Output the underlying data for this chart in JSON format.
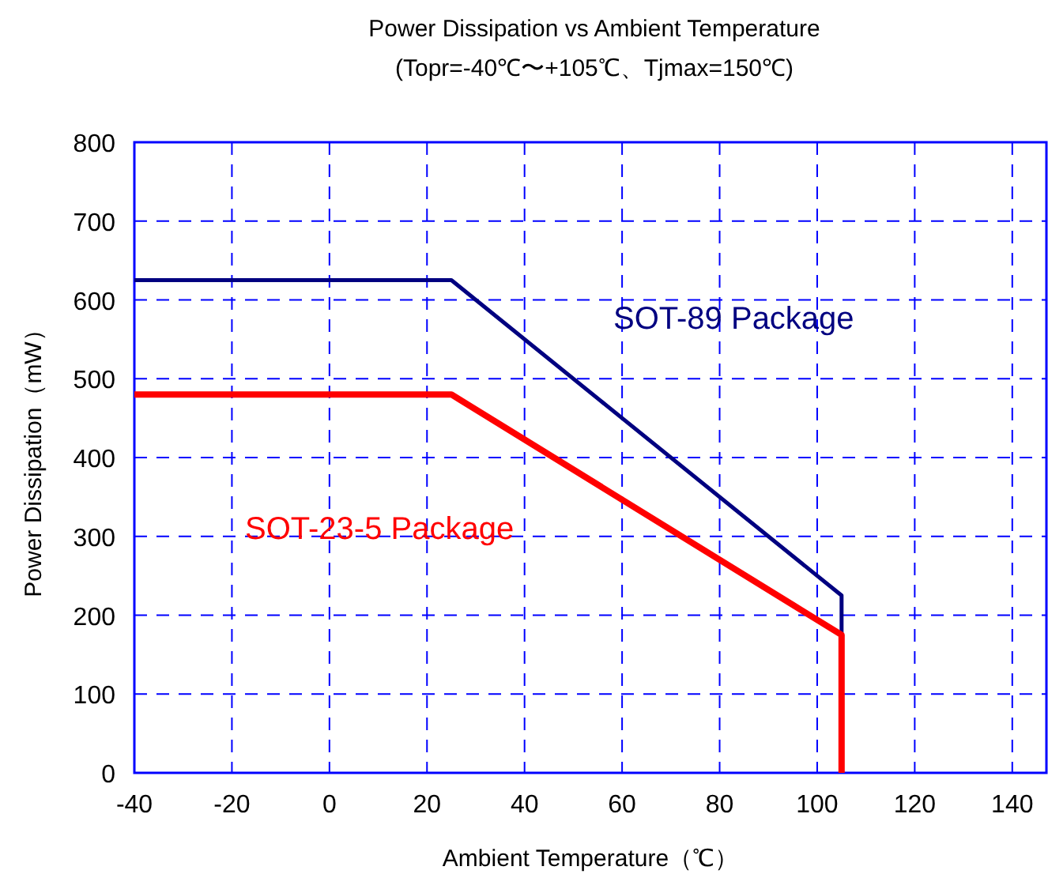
{
  "chart_data": {
    "type": "line",
    "title": "Power Dissipation vs Ambient Temperature",
    "subtitle": "(Topr=-40℃〜+105℃、Tjmax=150℃)",
    "xlabel": "Ambient Temperature（℃）",
    "ylabel": "Power Dissipation（mW）",
    "xlim": [
      -40,
      147
    ],
    "xticks": [
      -40,
      -20,
      0,
      20,
      40,
      60,
      80,
      100,
      120,
      140
    ],
    "ylim": [
      0,
      800
    ],
    "yticks": [
      0,
      100,
      200,
      300,
      400,
      500,
      600,
      700,
      800
    ],
    "grid": true,
    "marker": "none",
    "line_style": "solid",
    "series": [
      {
        "name": "SOT-89 Package",
        "color": "#000080",
        "x": [
          -40,
          25,
          105,
          105
        ],
        "values": [
          625,
          625,
          225,
          0
        ]
      },
      {
        "name": "SOT-23-5 Package",
        "color": "#ff0000",
        "x": [
          -40,
          25,
          105,
          105
        ],
        "values": [
          480,
          480,
          175,
          0
        ]
      }
    ]
  }
}
